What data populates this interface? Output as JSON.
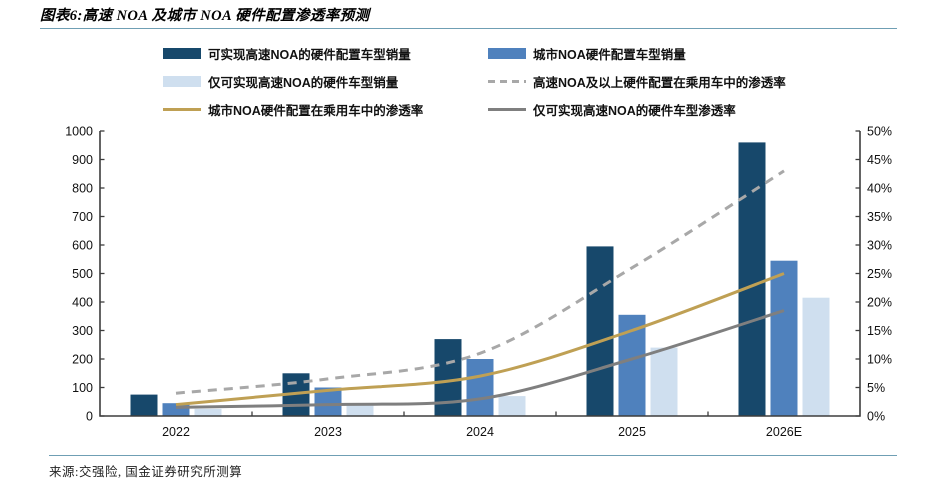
{
  "title": "图表6:高速 NOA 及城市 NOA 硬件配置渗透率预测",
  "source": "来源:交强险, 国金证券研究所测算",
  "colors": {
    "bar_dark": "#17486b",
    "bar_mid": "#4f81bd",
    "bar_light": "#cfdfef",
    "line_dashed": "#a8a8a8",
    "line_gold": "#bfa054",
    "line_gray": "#7f7f7f",
    "rule": "#6f9fb4",
    "axis": "#3d3d3d",
    "text": "#111111"
  },
  "legend": [
    {
      "label": "可实现高速NOA的硬件配置车型销量",
      "swatch": "bar",
      "color_key": "bar_dark"
    },
    {
      "label": "城市NOA硬件配置车型销量",
      "swatch": "bar",
      "color_key": "bar_mid"
    },
    {
      "label": "仅可实现高速NOA的硬件车型销量",
      "swatch": "bar",
      "color_key": "bar_light"
    },
    {
      "label": "高速NOA及以上硬件配置在乘用车中的渗透率",
      "swatch": "dashed",
      "color_key": "line_dashed"
    },
    {
      "label": "城市NOA硬件配置在乘用车中的渗透率",
      "swatch": "line",
      "color_key": "line_gold"
    },
    {
      "label": "仅可实现高速NOA的硬件车型渗透率",
      "swatch": "line",
      "color_key": "line_gray"
    }
  ],
  "chart_data": {
    "type": "combo bar+line",
    "title": "高速 NOA 及城市 NOA 硬件配置渗透率预测",
    "categories": [
      "2022",
      "2023",
      "2024",
      "2025",
      "2026E"
    ],
    "bar_series": [
      {
        "name": "可实现高速NOA的硬件配置车型销量",
        "color_key": "bar_dark",
        "values": [
          75,
          150,
          270,
          595,
          960
        ]
      },
      {
        "name": "城市NOA硬件配置车型销量",
        "color_key": "bar_mid",
        "values": [
          45,
          100,
          200,
          355,
          545
        ]
      },
      {
        "name": "仅可实现高速NOA的硬件车型销量",
        "color_key": "bar_light",
        "values": [
          25,
          40,
          70,
          240,
          415
        ]
      }
    ],
    "line_series": [
      {
        "name": "高速NOA及以上硬件配置在乘用车中的渗透率",
        "color_key": "line_dashed",
        "dashed": true,
        "values": [
          4,
          6.5,
          11,
          26,
          43
        ]
      },
      {
        "name": "城市NOA硬件配置在乘用车中的渗透率",
        "color_key": "line_gold",
        "dashed": false,
        "values": [
          2,
          4.5,
          7,
          15,
          25
        ]
      },
      {
        "name": "仅可实现高速NOA的硬件车型渗透率",
        "color_key": "line_gray",
        "dashed": false,
        "values": [
          1.5,
          2,
          3,
          10,
          18.5
        ]
      }
    ],
    "left_axis": {
      "min": 0,
      "max": 1000,
      "step": 100,
      "labels": [
        "0",
        "100",
        "200",
        "300",
        "400",
        "500",
        "600",
        "700",
        "800",
        "900",
        "1000"
      ]
    },
    "right_axis": {
      "min": 0,
      "max": 50,
      "step": 5,
      "unit": "%",
      "labels": [
        "0%",
        "5%",
        "10%",
        "15%",
        "20%",
        "25%",
        "30%",
        "35%",
        "40%",
        "45%",
        "50%"
      ]
    },
    "grid": false,
    "legend_position": "top"
  }
}
